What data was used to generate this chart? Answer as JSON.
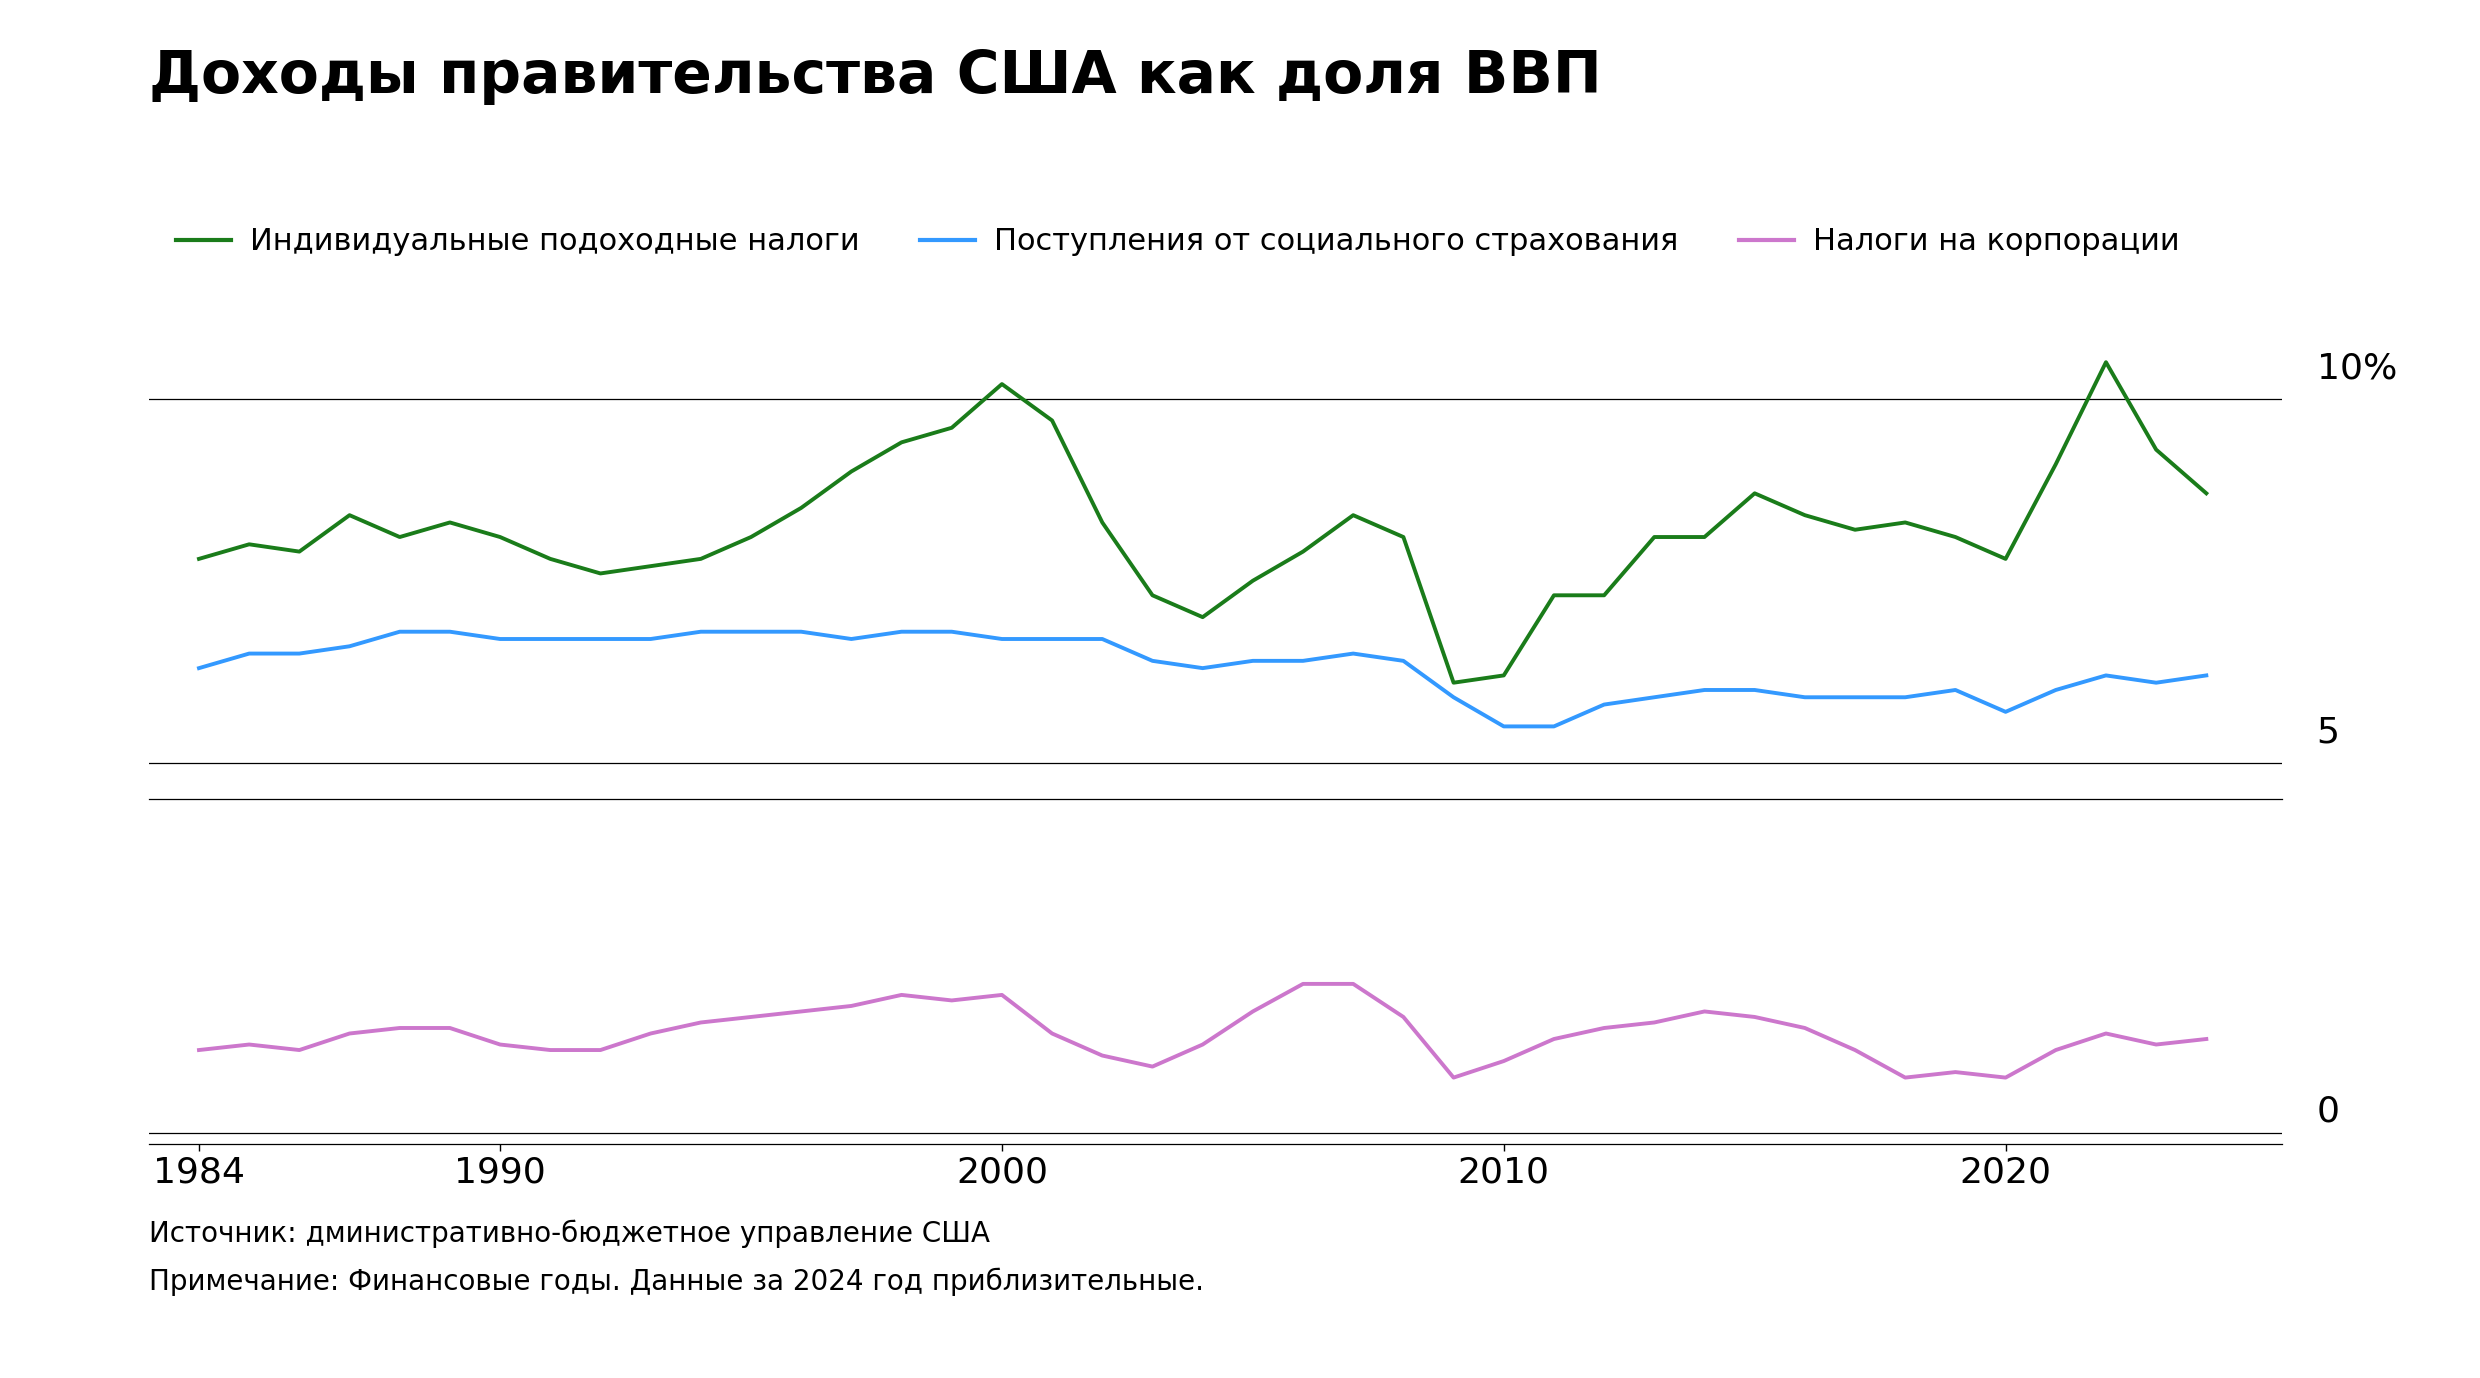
{
  "title": "Доходы правительства США как доля ВВП",
  "legend_labels": [
    "Индивидуальные подоходные налоги",
    "Поступления от социального страхования",
    "Налоги на корпорации"
  ],
  "legend_colors": [
    "#1a7c1a",
    "#3399ff",
    "#cc77cc"
  ],
  "source_text": "Источник: дминистративно-бюджетное управление США",
  "note_text": "Примечание: Финансовые годы. Данные за 2024 год приблизительные.",
  "years": [
    1984,
    1985,
    1986,
    1987,
    1988,
    1989,
    1990,
    1991,
    1992,
    1993,
    1994,
    1995,
    1996,
    1997,
    1998,
    1999,
    2000,
    2001,
    2002,
    2003,
    2004,
    2005,
    2006,
    2007,
    2008,
    2009,
    2010,
    2011,
    2012,
    2013,
    2014,
    2015,
    2016,
    2017,
    2018,
    2019,
    2020,
    2021,
    2022,
    2023,
    2024
  ],
  "individual_taxes": [
    7.8,
    8.0,
    7.9,
    8.4,
    8.1,
    8.3,
    8.1,
    7.8,
    7.6,
    7.7,
    7.8,
    8.1,
    8.5,
    9.0,
    9.4,
    9.6,
    10.2,
    9.7,
    8.3,
    7.3,
    7.0,
    7.5,
    7.9,
    8.4,
    8.1,
    6.1,
    6.2,
    7.3,
    7.3,
    8.1,
    8.1,
    8.7,
    8.4,
    8.2,
    8.3,
    8.1,
    7.8,
    9.1,
    10.5,
    9.3,
    8.7
  ],
  "social_insurance": [
    6.3,
    6.5,
    6.5,
    6.6,
    6.8,
    6.8,
    6.7,
    6.7,
    6.7,
    6.7,
    6.8,
    6.8,
    6.8,
    6.7,
    6.8,
    6.8,
    6.7,
    6.7,
    6.7,
    6.4,
    6.3,
    6.4,
    6.4,
    6.5,
    6.4,
    5.9,
    5.5,
    5.5,
    5.8,
    5.9,
    6.0,
    6.0,
    5.9,
    5.9,
    5.9,
    6.0,
    5.7,
    6.0,
    6.2,
    6.1,
    6.2
  ],
  "corporate_taxes": [
    1.5,
    1.6,
    1.5,
    1.8,
    1.9,
    1.9,
    1.6,
    1.5,
    1.5,
    1.8,
    2.0,
    2.1,
    2.2,
    2.3,
    2.5,
    2.4,
    2.5,
    1.8,
    1.4,
    1.2,
    1.6,
    2.2,
    2.7,
    2.7,
    2.1,
    1.0,
    1.3,
    1.7,
    1.9,
    2.0,
    2.2,
    2.1,
    1.9,
    1.5,
    1.0,
    1.1,
    1.0,
    1.5,
    1.8,
    1.6,
    1.7
  ],
  "background_color": "#ffffff",
  "line_width": 2.8,
  "xticks": [
    1984,
    1990,
    2000,
    2010,
    2020
  ],
  "title_fontsize": 42,
  "legend_fontsize": 22,
  "tick_fontsize": 26,
  "note_fontsize": 20
}
